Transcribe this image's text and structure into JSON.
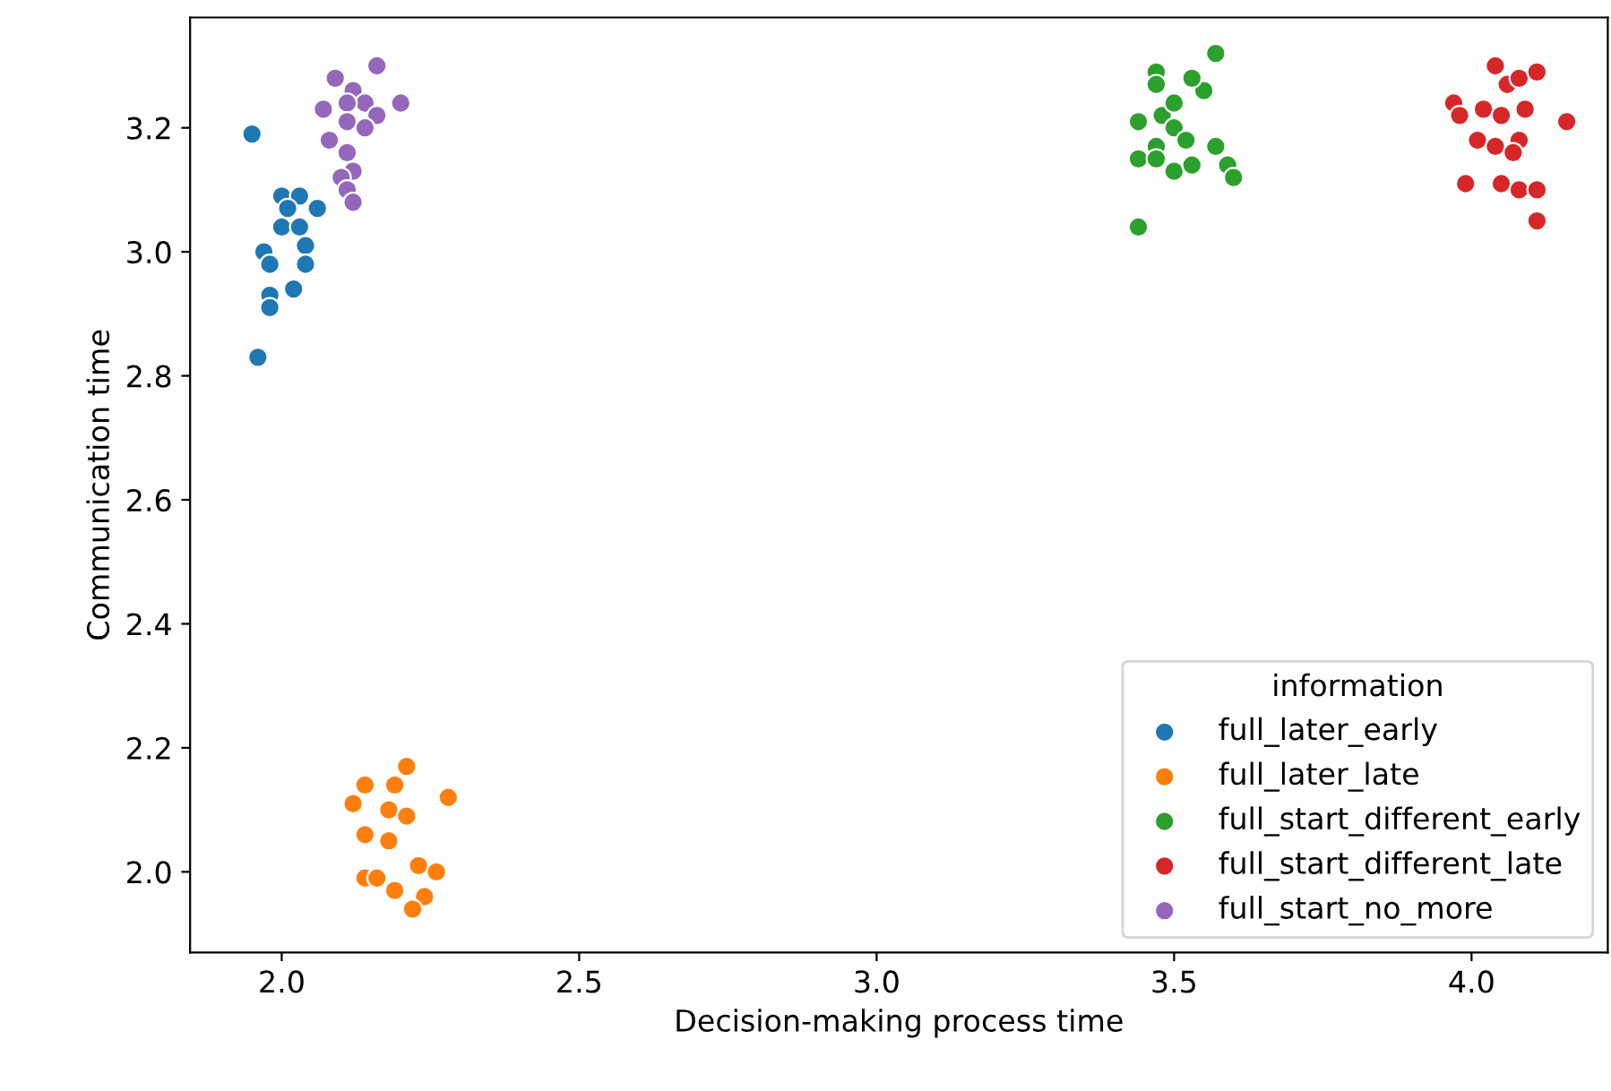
{
  "chart_data": {
    "type": "scatter",
    "xlabel": "Decision-making process time",
    "ylabel": "Communication time",
    "legend_title": "information",
    "legend": "bottom right",
    "grid": false,
    "marker": "circle",
    "xlim": [
      1.846,
      4.229
    ],
    "ylim": [
      1.87,
      3.378
    ],
    "xticks": [
      {
        "value": 2,
        "label": "2.0"
      },
      2.5,
      {
        "value": 3,
        "label": "3.0"
      },
      3.5,
      {
        "value": 4,
        "label": "4.0"
      }
    ],
    "yticks": [
      {
        "value": 2,
        "label": "2.0"
      },
      2.2,
      2.4,
      2.6,
      2.8,
      {
        "value": 3,
        "label": "3.0"
      },
      3.2
    ],
    "series": [
      {
        "name": "full_later_early",
        "color": "#1f77b4",
        "x": [
          1.95,
          1.96,
          2.0,
          2.03,
          2.06,
          2.0,
          2.03,
          2.04,
          1.97,
          1.98,
          2.04,
          1.98,
          2.02,
          1.98,
          2.01
        ],
        "values": [
          3.19,
          2.83,
          3.09,
          3.09,
          3.07,
          3.04,
          3.04,
          3.01,
          3.0,
          2.98,
          2.98,
          2.93,
          2.94,
          2.91,
          3.07
        ]
      },
      {
        "name": "full_later_late",
        "color": "#ff7f0e",
        "x": [
          2.21,
          2.14,
          2.19,
          2.12,
          2.28,
          2.18,
          2.21,
          2.14,
          2.18,
          2.23,
          2.26,
          2.14,
          2.16,
          2.19,
          2.24,
          2.22
        ],
        "values": [
          2.17,
          2.14,
          2.14,
          2.11,
          2.12,
          2.1,
          2.09,
          2.06,
          2.05,
          2.01,
          2.0,
          1.99,
          1.99,
          1.97,
          1.96,
          1.94
        ]
      },
      {
        "name": "full_start_different_early",
        "color": "#2ca02c",
        "x": [
          3.47,
          3.47,
          3.44,
          3.48,
          3.5,
          3.5,
          3.47,
          3.44,
          3.47,
          3.5,
          3.44,
          3.57,
          3.55,
          3.57,
          3.59,
          3.6,
          3.53,
          3.52,
          3.53
        ],
        "values": [
          3.29,
          3.27,
          3.21,
          3.22,
          3.24,
          3.2,
          3.17,
          3.15,
          3.15,
          3.13,
          3.04,
          3.32,
          3.26,
          3.17,
          3.14,
          3.12,
          3.14,
          3.18,
          3.28
        ]
      },
      {
        "name": "full_start_different_late",
        "color": "#d62728",
        "x": [
          4.04,
          4.06,
          4.08,
          4.11,
          3.97,
          3.98,
          4.02,
          4.05,
          4.09,
          4.16,
          4.01,
          4.04,
          4.08,
          4.07,
          3.99,
          4.05,
          4.08,
          4.11,
          4.11
        ],
        "values": [
          3.3,
          3.27,
          3.28,
          3.29,
          3.24,
          3.22,
          3.23,
          3.22,
          3.23,
          3.21,
          3.18,
          3.17,
          3.18,
          3.16,
          3.11,
          3.11,
          3.1,
          3.1,
          3.05
        ]
      },
      {
        "name": "full_start_no_more",
        "color": "#9467bd",
        "x": [
          2.16,
          2.09,
          2.12,
          2.2,
          2.07,
          2.14,
          2.11,
          2.16,
          2.11,
          2.14,
          2.08,
          2.11,
          2.12,
          2.1,
          2.11,
          2.12
        ],
        "values": [
          3.3,
          3.28,
          3.26,
          3.24,
          3.23,
          3.24,
          3.24,
          3.22,
          3.21,
          3.2,
          3.18,
          3.16,
          3.13,
          3.12,
          3.1,
          3.08
        ]
      }
    ]
  }
}
